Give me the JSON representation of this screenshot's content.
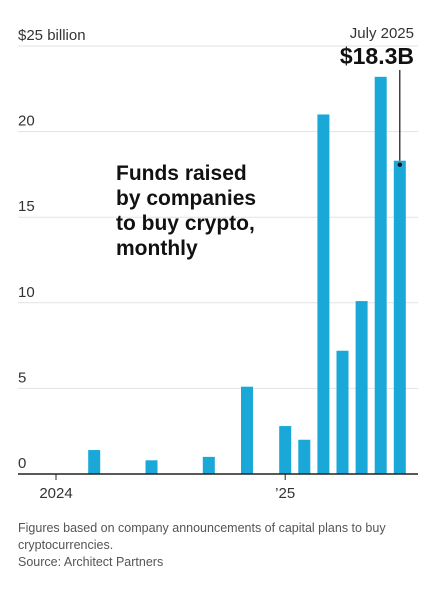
{
  "chart_data": {
    "type": "bar",
    "title": "Funds raised by companies to buy crypto, monthly",
    "title_lines": [
      "Funds raised",
      "by companies",
      "to buy crypto,",
      "monthly"
    ],
    "y_unit_label": "$25 billion",
    "ylim": [
      0,
      25
    ],
    "yticks": [
      0,
      5,
      10,
      15,
      20,
      25
    ],
    "ytick_labels": [
      "0",
      "5",
      "10",
      "15",
      "20",
      "$25 billion"
    ],
    "grid": true,
    "color": "#1aa8d8",
    "categories": [
      "2024-01",
      "2024-02",
      "2024-03",
      "2024-04",
      "2024-05",
      "2024-06",
      "2024-07",
      "2024-08",
      "2024-09",
      "2024-10",
      "2024-11",
      "2024-12",
      "2025-01",
      "2025-02",
      "2025-03",
      "2025-04",
      "2025-05",
      "2025-06",
      "2025-07"
    ],
    "values": [
      0,
      0,
      1.4,
      0,
      0,
      0.8,
      0,
      0,
      1.0,
      0,
      5.1,
      0,
      2.8,
      2.0,
      21.0,
      7.2,
      10.1,
      23.2,
      18.3
    ],
    "xtick_labels": [
      {
        "index": 0,
        "label": "2024"
      },
      {
        "index": 12,
        "label": "’25"
      }
    ],
    "annotation": {
      "index": 18,
      "line1": "July 2025",
      "line2": "$18.3B"
    }
  },
  "footnote": {
    "line1": "Figures based on company announcements of capital plans to buy",
    "line2": "cryptocurrencies.",
    "source": "Source: Architect Partners"
  }
}
